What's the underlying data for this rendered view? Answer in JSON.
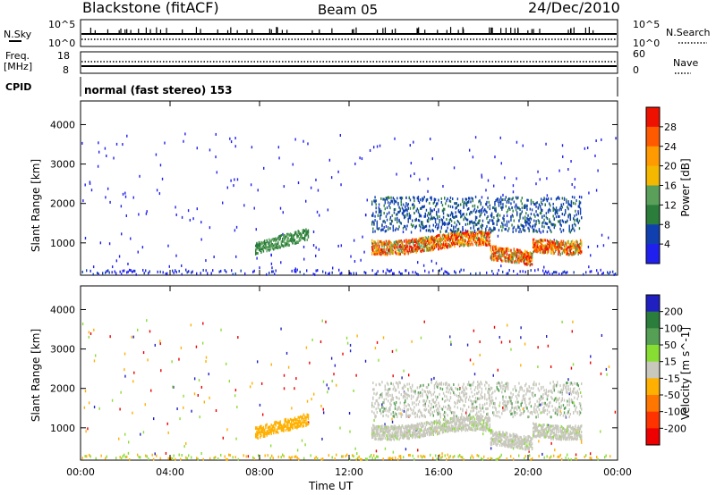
{
  "header": {
    "station": "Blackstone (fitACF)",
    "beam": "Beam 05",
    "date": "24/Dec/2010",
    "cpid_text": "normal (fast stereo) 153"
  },
  "top_panels": {
    "nsky_label": "N.Sky",
    "nsky_ticks": [
      "10^5",
      "10^0"
    ],
    "nsearch_label": "N.Search",
    "nsearch_ticks": [
      "10^5",
      "10^0"
    ],
    "freq_label_1": "Freq.",
    "freq_label_2": "[MHz]",
    "freq_ticks": [
      "18",
      "8"
    ],
    "nave_label": "Nave",
    "nave_ticks": [
      "60",
      "0"
    ],
    "cpid_label": "CPID"
  },
  "chart_data": [
    {
      "type": "heatmap",
      "name": "power",
      "xlabel": "",
      "ylabel": "Slant Range [km]",
      "x_ticks": [
        "00:00",
        "04:00",
        "08:00",
        "12:00",
        "16:00",
        "20:00",
        "00:00"
      ],
      "x_range_hours": [
        0,
        24
      ],
      "y_ticks": [
        1000,
        2000,
        3000,
        4000
      ],
      "y_range_km": [
        180,
        4600
      ],
      "colorbar": {
        "label": "Power [dB]",
        "ticks": [
          "28",
          "24",
          "20",
          "16",
          "12",
          "8",
          "4"
        ],
        "colors": [
          "#ee1100",
          "#ff5a00",
          "#ff9a00",
          "#f5b800",
          "#5aa05a",
          "#2a7d3a",
          "#1040b0",
          "#2020ee"
        ]
      },
      "features": [
        {
          "desc": "main band",
          "hours": [
            13.0,
            22.4
          ],
          "range_km": [
            800,
            1300
          ],
          "level_db": 24
        },
        {
          "desc": "trough",
          "hours": [
            18.5,
            20.0
          ],
          "range_km": [
            400,
            700
          ],
          "level_db": 20
        },
        {
          "desc": "upper scatter",
          "hours": [
            13.2,
            22.8
          ],
          "range_km": [
            1300,
            2300
          ],
          "level_db": 8
        },
        {
          "desc": "morning patch",
          "hours": [
            7.8,
            10.0
          ],
          "range_km": [
            750,
            1200
          ],
          "level_db": 14
        },
        {
          "desc": "ground scatter",
          "hours": [
            0,
            24
          ],
          "range_km": [
            180,
            300
          ],
          "level_db": 6
        }
      ]
    },
    {
      "type": "heatmap",
      "name": "velocity",
      "xlabel": "Time UT",
      "ylabel": "Slant Range [km]",
      "x_ticks": [
        "00:00",
        "04:00",
        "08:00",
        "12:00",
        "16:00",
        "20:00",
        "00:00"
      ],
      "x_range_hours": [
        0,
        24
      ],
      "y_ticks": [
        1000,
        2000,
        3000,
        4000
      ],
      "y_range_km": [
        180,
        4600
      ],
      "colorbar": {
        "label": "Velocity [m s^-1]",
        "ticks": [
          "200",
          "100",
          "50",
          "15",
          "-15",
          "-50",
          "-100",
          "-200"
        ],
        "colors": [
          "#2020c0",
          "#2a7d3a",
          "#55a055",
          "#88dd33",
          "#c8c8bd",
          "#ffb000",
          "#ff7700",
          "#ff3300",
          "#ee0000"
        ]
      },
      "features": [
        {
          "desc": "ground-scatter grey",
          "hours": [
            13.0,
            22.4
          ],
          "range_km": [
            400,
            2300
          ],
          "velocity": 0
        },
        {
          "desc": "orange patch",
          "hours": [
            7.8,
            10.0
          ],
          "range_km": [
            750,
            1200
          ],
          "velocity": -50
        },
        {
          "desc": "near-range orange",
          "hours": [
            0,
            24
          ],
          "range_km": [
            180,
            300
          ],
          "velocity": -30
        }
      ]
    }
  ]
}
